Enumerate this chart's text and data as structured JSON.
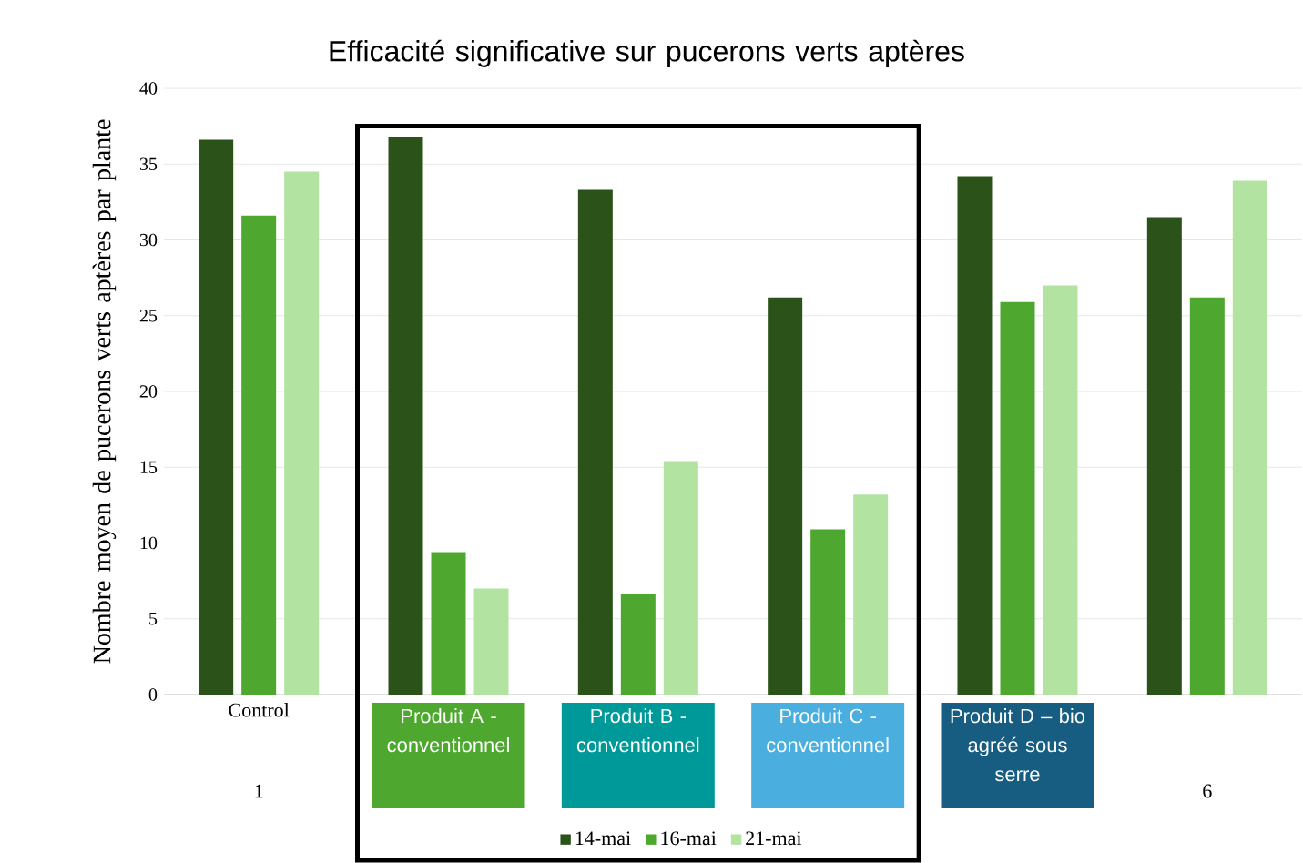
{
  "chart_data": {
    "type": "bar",
    "title": "Efficacité significative sur pucerons verts aptères",
    "ylabel": "Nombre moyen de pucerons verts aptères  par plante",
    "categories": [
      "Control",
      "Produit A - conventionnel",
      "Produit B - conventionnel",
      "Produit C - conventionnel",
      "Produit D – bio agréé sous serre",
      null
    ],
    "annotations": [
      "1",
      "6"
    ],
    "series": [
      {
        "name": "14-mai",
        "color": "#2a5219",
        "values": [
          36.6,
          36.8,
          33.3,
          26.2,
          34.2,
          31.5
        ]
      },
      {
        "name": "16-mai",
        "color": "#4ea72e",
        "values": [
          31.6,
          9.4,
          6.6,
          10.9,
          25.9,
          26.2
        ]
      },
      {
        "name": "21-mai",
        "color": "#b3e3a1",
        "values": [
          34.5,
          7.0,
          15.4,
          13.2,
          27.0,
          33.9
        ]
      }
    ],
    "ylim": [
      0,
      40
    ],
    "yticks": [
      0,
      5,
      10,
      15,
      20,
      25,
      30,
      35,
      40
    ],
    "grid": "y",
    "legend": "bottom"
  }
}
